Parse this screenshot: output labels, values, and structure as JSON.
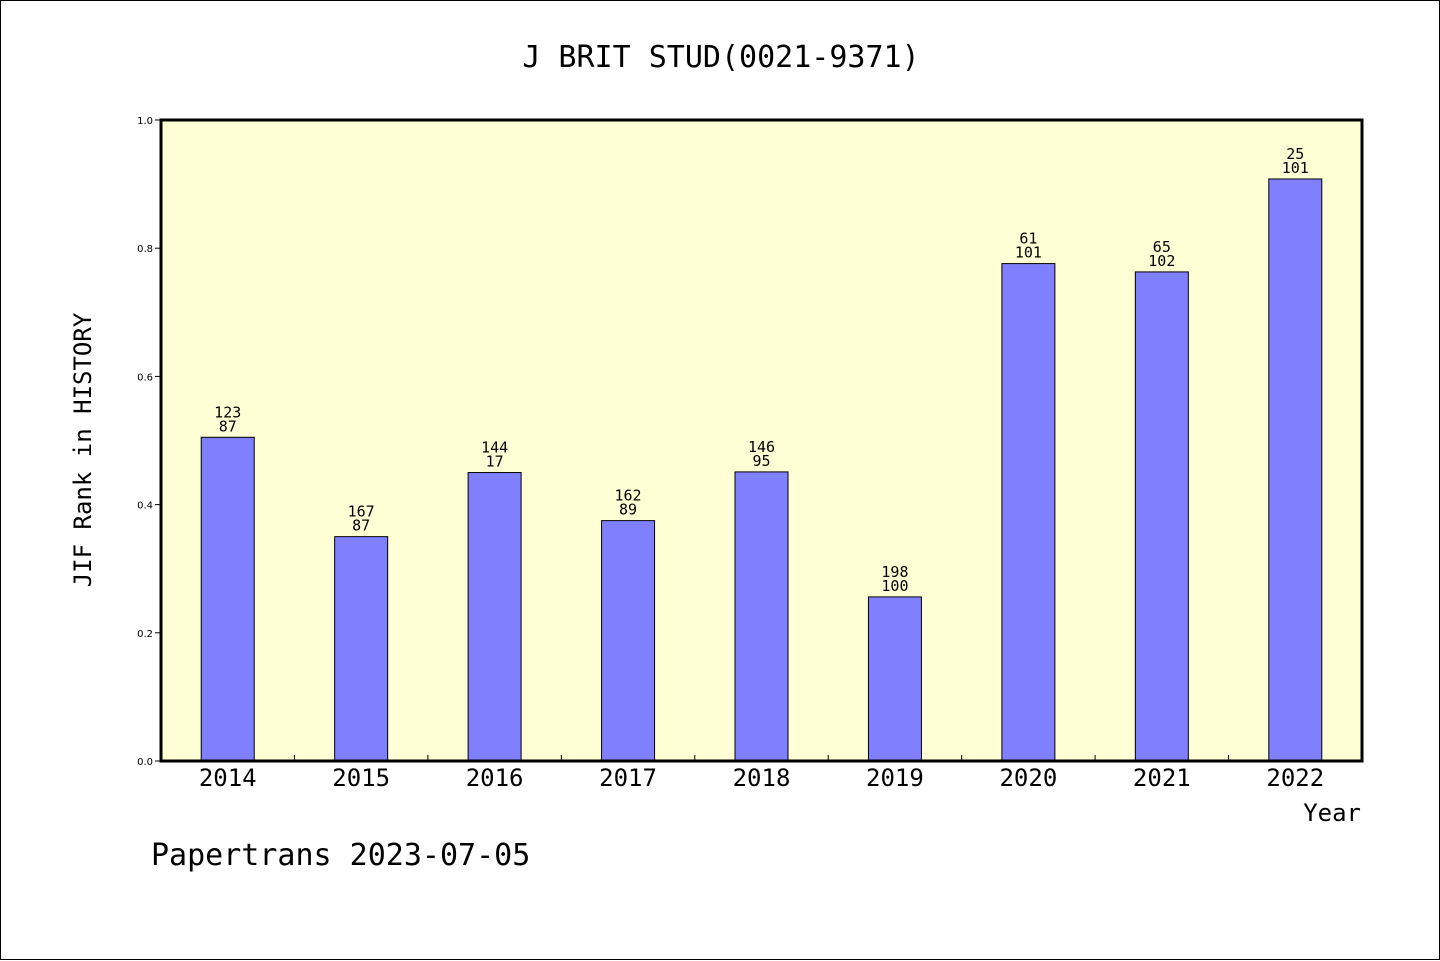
{
  "colors": {
    "plot_background": "#ffffd5",
    "bar_fill": "#8080ff",
    "bar_stroke": "#000000"
  },
  "footer": "Papertrans 2023-07-05",
  "chart_data": {
    "type": "bar",
    "title": "J BRIT STUD(0021-9371)",
    "xlabel": "Year",
    "ylabel": "JIF Rank in HISTORY",
    "ylim": [
      0,
      1.0
    ],
    "yticks": [
      "0.0",
      "0.2",
      "0.4",
      "0.6",
      "0.8",
      "1.0"
    ],
    "grid": false,
    "categories": [
      "2014",
      "2015",
      "2016",
      "2017",
      "2018",
      "2019",
      "2020",
      "2021",
      "2022"
    ],
    "values": [
      0.505,
      0.35,
      0.45,
      0.375,
      0.451,
      0.256,
      0.776,
      0.763,
      0.908
    ],
    "labels_top": [
      "123",
      "167",
      "144",
      "162",
      "146",
      "198",
      "61",
      "65",
      "25"
    ],
    "labels_bottom": [
      "87",
      "87",
      "17",
      "89",
      "95",
      "100",
      "101",
      "102",
      "101"
    ]
  }
}
